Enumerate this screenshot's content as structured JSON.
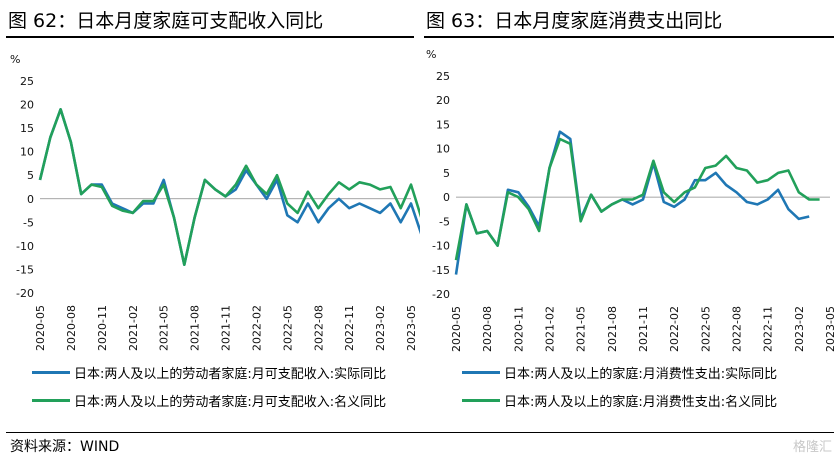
{
  "titles": {
    "left": "图 62：日本月度家庭可支配收入同比",
    "right": "图 63：日本月度家庭消费支出同比"
  },
  "source": "资料来源：WIND",
  "watermark": "格隆汇",
  "colors": {
    "real": "#1f77b4",
    "nominal": "#22a05a"
  },
  "chart_data": [
    {
      "type": "line",
      "title": "图 62：日本月度家庭可支配收入同比",
      "ylabel": "%",
      "ylim": [
        -20,
        25
      ],
      "yticks": [
        -20,
        -15,
        -10,
        -5,
        0,
        5,
        10,
        15,
        20,
        25
      ],
      "x_start": "2020-05",
      "x_tick_labels": [
        "2020-05",
        "2020-08",
        "2020-11",
        "2021-02",
        "2021-05",
        "2021-08",
        "2021-11",
        "2022-02",
        "2022-05",
        "2022-08",
        "2022-11",
        "2023-02",
        "2023-05"
      ],
      "legend": "bottom",
      "series": [
        {
          "name": "日本:两人及以上的劳动者家庭:月可支配收入:实际同比",
          "color": "#1f77b4",
          "values": [
            4,
            13,
            19,
            12,
            1,
            3,
            3,
            -1,
            -2,
            -3,
            -1,
            -1,
            4,
            -4,
            -14,
            -4,
            4,
            2,
            0.5,
            2,
            6,
            3,
            0,
            4,
            -3.5,
            -5,
            -1,
            -5,
            -2,
            0,
            -2,
            -1,
            -2,
            -3,
            -1,
            -5,
            -1,
            -7.5
          ]
        },
        {
          "name": "日本:两人及以上的劳动者家庭:月可支配收入:名义同比",
          "color": "#22a05a",
          "values": [
            4,
            13,
            19,
            12,
            1,
            3,
            2.5,
            -1.5,
            -2.5,
            -3,
            -0.5,
            -0.5,
            3,
            -4,
            -14,
            -4,
            4,
            2,
            0.5,
            3,
            7,
            3,
            1,
            5,
            -1,
            -3,
            1.5,
            -2,
            1,
            3.5,
            2,
            3.5,
            3,
            2,
            2.5,
            -2,
            3,
            -4
          ]
        }
      ]
    },
    {
      "type": "line",
      "title": "图 63：日本月度家庭消费支出同比",
      "ylabel": "%",
      "ylim": [
        -20,
        25
      ],
      "yticks": [
        -20,
        -15,
        -10,
        -5,
        0,
        5,
        10,
        15,
        20,
        25
      ],
      "x_start": "2020-05",
      "x_tick_labels": [
        "2020-05",
        "2020-08",
        "2020-11",
        "2021-02",
        "2021-05",
        "2021-08",
        "2021-11",
        "2022-02",
        "2022-05",
        "2022-08",
        "2022-11",
        "2023-02",
        "2023-05"
      ],
      "legend": "bottom",
      "series": [
        {
          "name": "日本:两人及以上的家庭:月消费性支出:实际同比",
          "color": "#1f77b4",
          "values": [
            -16,
            -1.5,
            -7.5,
            -7,
            -10,
            1.5,
            1,
            -2,
            -6,
            6,
            13.5,
            12,
            -4.5,
            0.5,
            -3,
            -1.5,
            -0.5,
            -1.5,
            -0.5,
            7,
            -1,
            -2,
            -0.5,
            3.5,
            3.5,
            5,
            2.5,
            1,
            -1,
            -1.5,
            -0.5,
            1.5,
            -2.5,
            -4.5,
            -4
          ]
        },
        {
          "name": "日本:两人及以上的家庭:月消费性支出:名义同比",
          "color": "#22a05a",
          "values": [
            -13,
            -1.5,
            -7.5,
            -7,
            -10,
            1,
            0,
            -2.5,
            -7,
            6,
            12,
            11,
            -5,
            0.5,
            -3,
            -1.5,
            -0.5,
            -0.5,
            0.5,
            7.5,
            1,
            -1,
            1,
            2,
            6,
            6.5,
            8.5,
            6,
            5.5,
            3,
            3.5,
            5,
            5.5,
            1,
            -0.5,
            -0.5
          ]
        }
      ]
    }
  ]
}
